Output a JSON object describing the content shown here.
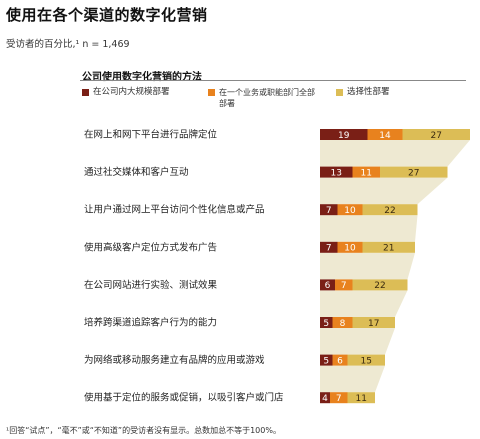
{
  "title": "使用在各个渠道的数字化营销",
  "subtitle": "受访者的百分比,¹ n = 1,469",
  "chart_title": "公司使用数字化营销的方法",
  "footnote": "¹回答“试点”，“毫不”或“不知道”的受访者没有显示。总数加总不等于100%。",
  "legend": [
    {
      "label": "在公司内大规模部署",
      "color": "#7a1f16"
    },
    {
      "label": "在一个业务或职能部门全部部署",
      "color": "#e8821e"
    },
    {
      "label": "选择性部署",
      "color": "#dcbd56"
    }
  ],
  "chart_data": {
    "type": "bar",
    "stacked": true,
    "orientation": "horizontal",
    "categories": [
      "在网上和网下平台进行品牌定位",
      "通过社交媒体和客户互动",
      "让用户通过网上平台访问个性化信息或产品",
      "使用高级客户定位方式发布广告",
      "在公司网站进行实验、测试效果",
      "培养跨渠道追踪客户行为的能力",
      "为网络或移动服务建立有品牌的应用或游戏",
      "使用基于定位的服务或促销，以吸引客户或门店"
    ],
    "series": [
      {
        "name": "在公司内大规模部署",
        "values": [
          19,
          13,
          7,
          7,
          6,
          5,
          5,
          4
        ]
      },
      {
        "name": "在一个业务或职能部门全部部署",
        "values": [
          14,
          11,
          10,
          10,
          7,
          8,
          6,
          7
        ]
      },
      {
        "name": "选择性部署",
        "values": [
          27,
          27,
          22,
          21,
          22,
          17,
          15,
          11
        ]
      }
    ],
    "colors": [
      "#7a1f16",
      "#e8821e",
      "#dcbd56"
    ],
    "connector_color": "#eee9d2"
  }
}
